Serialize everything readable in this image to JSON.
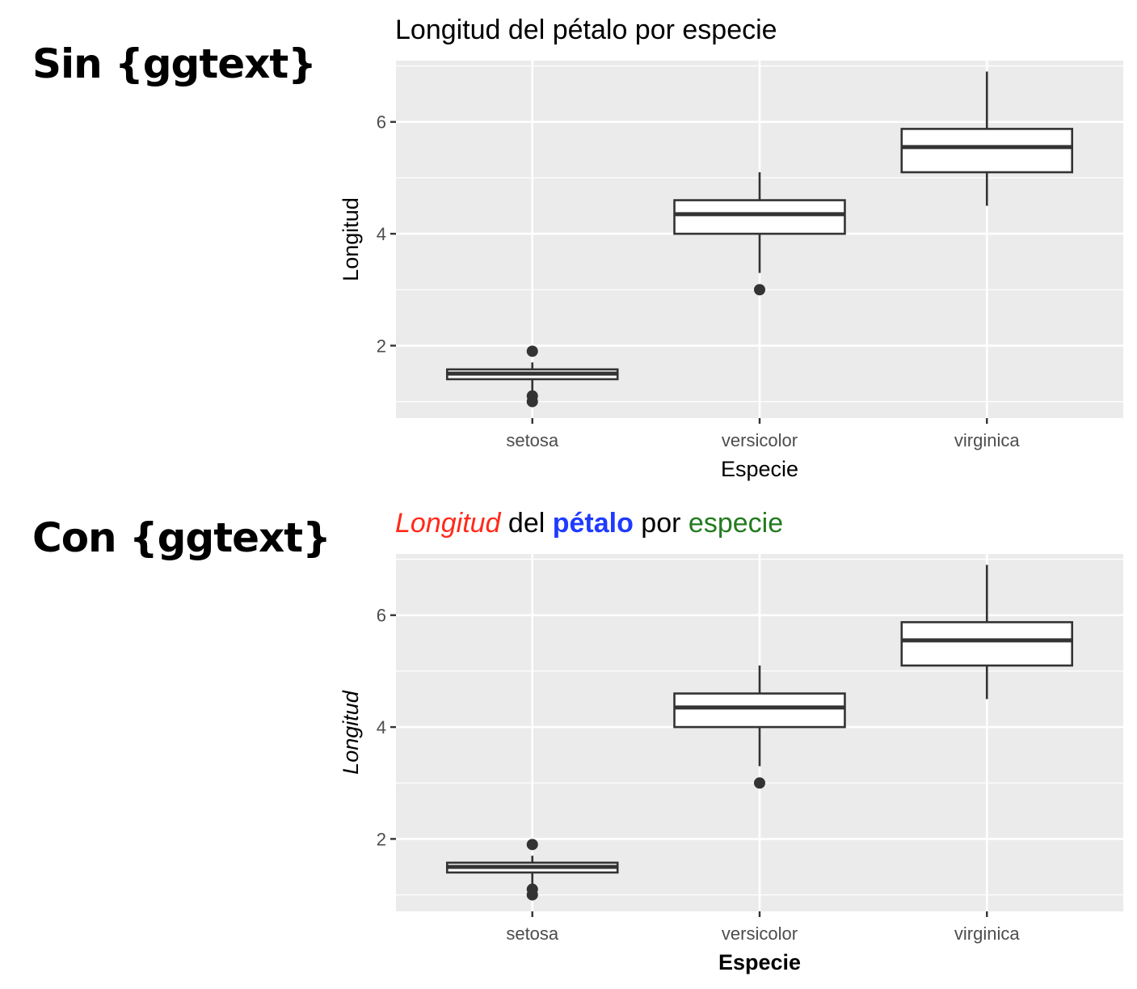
{
  "sections": [
    {
      "label": "Sin {ggtext}"
    },
    {
      "label": "Con {ggtext}"
    }
  ],
  "chart_data": [
    {
      "type": "boxplot",
      "title": "Longitud del pétalo por especie",
      "title_segments": [
        {
          "text": "Longitud del pétalo por especie",
          "color": "#000000",
          "italic": false,
          "bold": false
        }
      ],
      "xlabel": "Especie",
      "xlabel_bold": false,
      "ylabel": "Longitud",
      "ylabel_italic": false,
      "categories": [
        "setosa",
        "versicolor",
        "virginica"
      ],
      "yticks": [
        2,
        4,
        6
      ],
      "yminor": [
        1,
        3,
        5,
        7
      ],
      "ylim": [
        0.705,
        7.095
      ],
      "grid": true,
      "panel_bg": "#ebebeb",
      "boxes": [
        {
          "category": "setosa",
          "q1": 1.4,
          "median": 1.5,
          "q3": 1.575,
          "whisker_low": 1.1,
          "whisker_high": 1.7,
          "outliers": [
            1.0,
            1.1,
            1.9
          ]
        },
        {
          "category": "versicolor",
          "q1": 4.0,
          "median": 4.35,
          "q3": 4.6,
          "whisker_low": 3.3,
          "whisker_high": 5.1,
          "outliers": [
            3.0
          ]
        },
        {
          "category": "virginica",
          "q1": 5.1,
          "median": 5.55,
          "q3": 5.875,
          "whisker_low": 4.5,
          "whisker_high": 6.9,
          "outliers": []
        }
      ]
    },
    {
      "type": "boxplot",
      "title": "Longitud del pétalo por especie",
      "title_segments": [
        {
          "text": "Longitud",
          "color": "#ff2a1a",
          "italic": true,
          "bold": false
        },
        {
          "text": " del ",
          "color": "#000000",
          "italic": false,
          "bold": false
        },
        {
          "text": "pétalo",
          "color": "#1f3bff",
          "italic": false,
          "bold": true
        },
        {
          "text": " por ",
          "color": "#000000",
          "italic": false,
          "bold": false
        },
        {
          "text": "especie",
          "color": "#237a1f",
          "italic": false,
          "bold": false
        }
      ],
      "xlabel": "Especie",
      "xlabel_bold": true,
      "ylabel": "Longitud",
      "ylabel_italic": true,
      "categories": [
        "setosa",
        "versicolor",
        "virginica"
      ],
      "yticks": [
        2,
        4,
        6
      ],
      "yminor": [
        1,
        3,
        5,
        7
      ],
      "ylim": [
        0.705,
        7.095
      ],
      "grid": true,
      "panel_bg": "#ebebeb",
      "boxes": [
        {
          "category": "setosa",
          "q1": 1.4,
          "median": 1.5,
          "q3": 1.575,
          "whisker_low": 1.1,
          "whisker_high": 1.7,
          "outliers": [
            1.0,
            1.1,
            1.9
          ]
        },
        {
          "category": "versicolor",
          "q1": 4.0,
          "median": 4.35,
          "q3": 4.6,
          "whisker_low": 3.3,
          "whisker_high": 5.1,
          "outliers": [
            3.0
          ]
        },
        {
          "category": "virginica",
          "q1": 5.1,
          "median": 5.55,
          "q3": 5.875,
          "whisker_low": 4.5,
          "whisker_high": 6.9,
          "outliers": []
        }
      ]
    }
  ]
}
